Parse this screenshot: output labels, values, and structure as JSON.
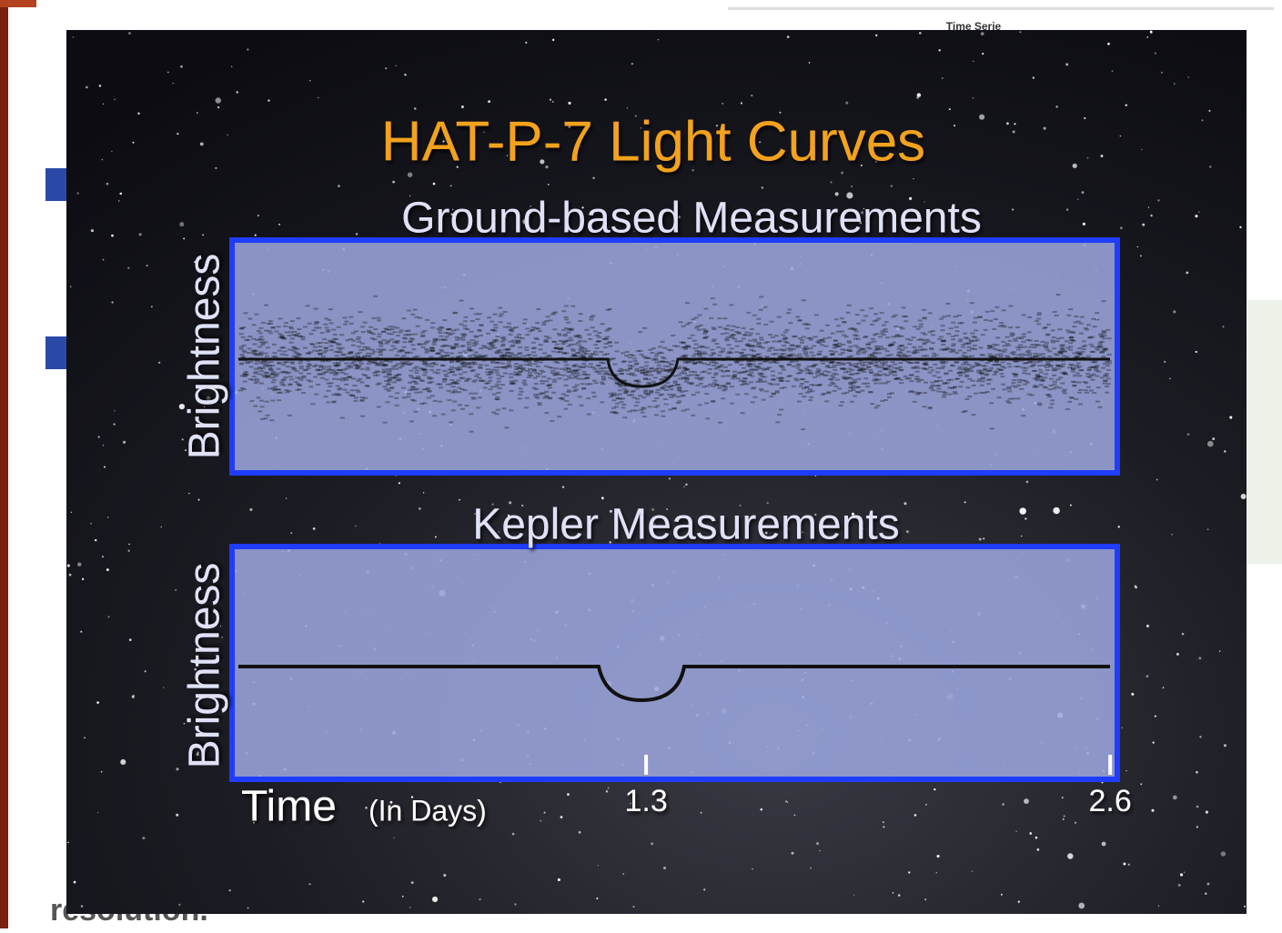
{
  "background_text": {
    "top_right": "Time Serie",
    "bottom": "resolution."
  },
  "slide": {
    "title": "HAT-P-7 Light Curves",
    "panels": [
      {
        "title": "Ground-based Measurements",
        "y_label": "Brightness"
      },
      {
        "title": "Kepler Measurements",
        "y_label": "Brightness"
      }
    ],
    "x_label": "Time",
    "x_unit": "(In Days)",
    "xlim": [
      0.14,
      2.62
    ],
    "xticks": [
      1.3,
      2.6
    ]
  }
}
